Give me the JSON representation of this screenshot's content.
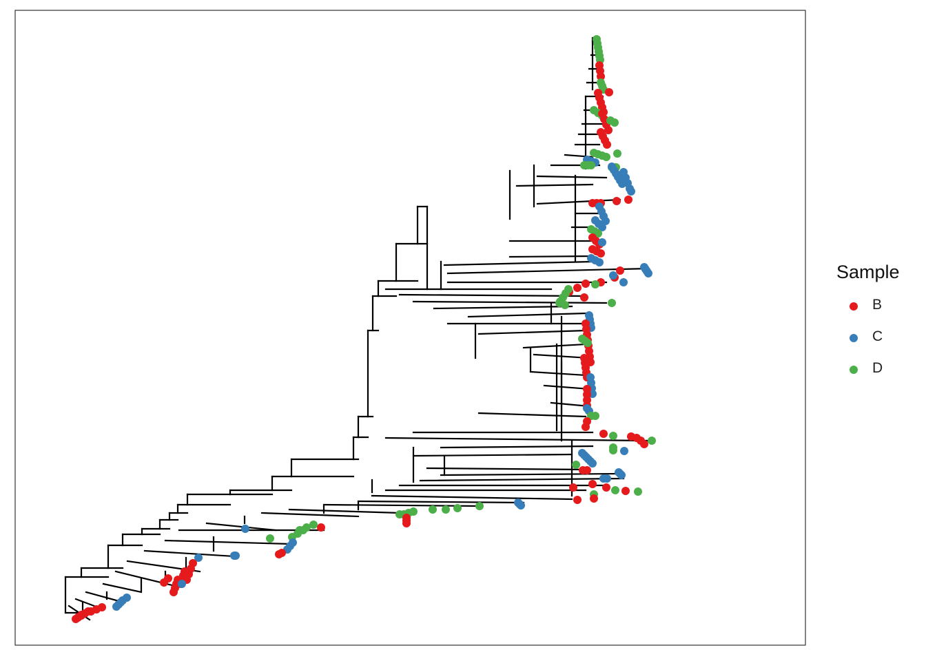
{
  "legend": {
    "title": "Sample",
    "items": [
      {
        "key": "B",
        "label": "B",
        "color": "#E41A1C"
      },
      {
        "key": "C",
        "label": "C",
        "color": "#377EB8"
      },
      {
        "key": "D",
        "label": "D",
        "color": "#4DAF4A"
      }
    ]
  },
  "colors": {
    "branch": "#000000",
    "panel_border": "#333333",
    "background": "#ffffff"
  }
}
